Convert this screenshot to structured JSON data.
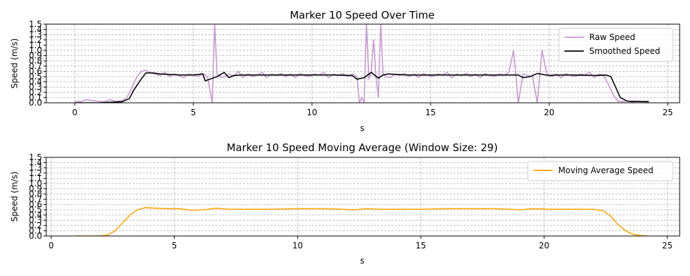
{
  "figure": {
    "background": "#ffffff"
  },
  "chart_data": [
    {
      "type": "line",
      "title": "Marker 10 Speed Over Time",
      "xlabel": "s",
      "ylabel": "Speed (m/s)",
      "xlim": [
        -1.2,
        25.5
      ],
      "ylim": [
        0.0,
        1.5
      ],
      "xticks": [
        0,
        5,
        10,
        15,
        20,
        25
      ],
      "xtick_labels": [
        "0",
        "5",
        "10",
        "15",
        "20",
        "25"
      ],
      "yticks": [
        0.0,
        0.1,
        0.2,
        0.3,
        0.4,
        0.5,
        0.6,
        0.7,
        0.8,
        0.9,
        1.0,
        1.1,
        1.2,
        1.3,
        1.4,
        1.5
      ],
      "ytick_labels": [
        "0.0",
        "0.1",
        "0.2",
        "0.3",
        "0.4",
        "0.5",
        "0.6",
        "0.7",
        "0.8",
        "0.9",
        "1.0",
        "1.1",
        "1.2",
        "1.3",
        "1.4",
        "1.5"
      ],
      "grid": true,
      "legend_position": "top-right",
      "series": [
        {
          "name": "Raw Speed",
          "color": "#c896d2",
          "x": [
            0,
            0.25,
            0.5,
            0.75,
            1.0,
            1.25,
            1.5,
            1.75,
            2.0,
            2.2,
            2.4,
            2.6,
            2.8,
            3.0,
            3.2,
            3.4,
            3.6,
            3.8,
            4.0,
            4.2,
            4.4,
            4.6,
            4.8,
            5.0,
            5.2,
            5.4,
            5.6,
            5.8,
            5.9,
            6.0,
            6.2,
            6.4,
            6.5,
            6.7,
            6.9,
            7.1,
            7.3,
            7.5,
            7.7,
            7.9,
            8.1,
            8.3,
            8.5,
            8.7,
            8.9,
            9.1,
            9.3,
            9.5,
            9.7,
            9.9,
            10.1,
            10.3,
            10.5,
            10.7,
            10.9,
            11.1,
            11.3,
            11.5,
            11.7,
            11.9,
            12.0,
            12.1,
            12.2,
            12.3,
            12.4,
            12.5,
            12.6,
            12.7,
            12.8,
            12.9,
            13.0,
            13.1,
            13.3,
            13.5,
            13.7,
            13.9,
            14.1,
            14.3,
            14.5,
            14.7,
            14.9,
            15.1,
            15.3,
            15.5,
            15.7,
            15.9,
            16.1,
            16.3,
            16.5,
            16.7,
            16.9,
            17.1,
            17.3,
            17.5,
            17.7,
            17.9,
            18.1,
            18.3,
            18.5,
            18.7,
            18.9,
            19.1,
            19.3,
            19.5,
            19.7,
            19.9,
            20.1,
            20.3,
            20.5,
            20.7,
            20.9,
            21.1,
            21.3,
            21.5,
            21.7,
            21.9,
            22.1,
            22.3,
            22.5,
            22.7,
            22.9,
            23.1,
            23.3,
            23.5,
            23.7,
            23.9,
            24.2
          ],
          "y": [
            0.03,
            0.02,
            0.06,
            0.04,
            0.03,
            0.02,
            0.06,
            0.03,
            0.04,
            0.1,
            0.28,
            0.48,
            0.6,
            0.62,
            0.57,
            0.55,
            0.52,
            0.58,
            0.5,
            0.55,
            0.52,
            0.48,
            0.55,
            0.53,
            0.5,
            0.56,
            0.5,
            0.0,
            1.5,
            0.55,
            0.48,
            0.52,
            0.55,
            0.5,
            0.6,
            0.48,
            0.55,
            0.5,
            0.53,
            0.58,
            0.48,
            0.55,
            0.52,
            0.56,
            0.5,
            0.55,
            0.48,
            0.56,
            0.52,
            0.5,
            0.55,
            0.53,
            0.58,
            0.48,
            0.55,
            0.52,
            0.56,
            0.5,
            0.55,
            0.5,
            0.0,
            0.1,
            0.0,
            1.5,
            0.45,
            0.6,
            1.2,
            0.5,
            0.1,
            1.5,
            0.55,
            0.5,
            0.48,
            0.55,
            0.52,
            0.56,
            0.5,
            0.55,
            0.48,
            0.56,
            0.52,
            0.5,
            0.55,
            0.53,
            0.58,
            0.48,
            0.55,
            0.52,
            0.56,
            0.5,
            0.55,
            0.48,
            0.56,
            0.52,
            0.5,
            0.55,
            0.53,
            0.58,
            1.0,
            0.0,
            0.55,
            0.52,
            0.5,
            0.0,
            1.0,
            0.56,
            0.5,
            0.55,
            0.48,
            0.56,
            0.52,
            0.5,
            0.55,
            0.53,
            0.58,
            0.48,
            0.55,
            0.52,
            0.35,
            0.15,
            0.03,
            0.02,
            0.04,
            0.01,
            0.03,
            0.02,
            0.03
          ]
        },
        {
          "name": "Smoothed Speed",
          "color": "#000000",
          "x": [
            0,
            1.0,
            2.0,
            2.3,
            2.5,
            2.8,
            3.0,
            3.3,
            3.6,
            4.0,
            4.5,
            5.0,
            5.4,
            5.5,
            5.7,
            6.0,
            6.3,
            6.5,
            6.7,
            7.0,
            7.5,
            8.0,
            9.0,
            10.0,
            11.0,
            11.7,
            11.9,
            12.2,
            12.5,
            12.8,
            13.0,
            13.2,
            14.0,
            15.0,
            16.0,
            17.0,
            18.0,
            18.7,
            18.9,
            19.2,
            19.5,
            20.0,
            20.3,
            21.0,
            22.0,
            22.4,
            22.6,
            22.8,
            23.0,
            23.3,
            24.2
          ],
          "y": [
            0.0,
            0.0,
            0.02,
            0.08,
            0.25,
            0.45,
            0.57,
            0.57,
            0.55,
            0.54,
            0.53,
            0.53,
            0.55,
            0.42,
            0.45,
            0.5,
            0.58,
            0.48,
            0.52,
            0.53,
            0.53,
            0.53,
            0.53,
            0.53,
            0.53,
            0.52,
            0.45,
            0.48,
            0.58,
            0.47,
            0.53,
            0.55,
            0.53,
            0.53,
            0.53,
            0.53,
            0.53,
            0.53,
            0.48,
            0.5,
            0.56,
            0.52,
            0.53,
            0.53,
            0.52,
            0.53,
            0.5,
            0.3,
            0.1,
            0.03,
            0.02
          ]
        }
      ]
    },
    {
      "type": "line",
      "title": "Marker 10 Speed Moving Average (Window Size: 29)",
      "xlabel": "s",
      "ylabel": "Speed (m/s)",
      "xlim": [
        -0.2,
        25.5
      ],
      "ylim": [
        0.0,
        1.5
      ],
      "xticks": [
        0,
        5,
        10,
        15,
        20,
        25
      ],
      "xtick_labels": [
        "0",
        "5",
        "10",
        "15",
        "20",
        "25"
      ],
      "yticks": [
        0.0,
        0.1,
        0.2,
        0.3,
        0.4,
        0.5,
        0.6,
        0.7,
        0.8,
        0.9,
        1.0,
        1.1,
        1.2,
        1.3,
        1.4,
        1.5
      ],
      "ytick_labels": [
        "0.0",
        "0.1",
        "0.2",
        "0.3",
        "0.4",
        "0.5",
        "0.6",
        "0.7",
        "0.8",
        "0.9",
        "1.0",
        "1.1",
        "1.2",
        "1.3",
        "1.4",
        "1.5"
      ],
      "grid": true,
      "legend_position": "top-right",
      "series": [
        {
          "name": "Moving Average Speed",
          "color": "#ffa500",
          "x": [
            1.0,
            2.0,
            2.3,
            2.6,
            2.9,
            3.2,
            3.5,
            3.8,
            4.2,
            4.7,
            5.2,
            5.7,
            6.2,
            6.7,
            7.2,
            8.0,
            9.0,
            10.0,
            11.0,
            11.8,
            12.3,
            12.8,
            13.3,
            14.0,
            15.0,
            16.0,
            17.0,
            18.0,
            18.6,
            19.0,
            19.6,
            20.2,
            21.0,
            22.0,
            22.4,
            22.7,
            23.0,
            23.3,
            23.6,
            23.9,
            24.2
          ],
          "y": [
            0.0,
            0.0,
            0.02,
            0.1,
            0.25,
            0.4,
            0.5,
            0.54,
            0.53,
            0.52,
            0.52,
            0.49,
            0.5,
            0.53,
            0.51,
            0.51,
            0.51,
            0.52,
            0.52,
            0.51,
            0.5,
            0.52,
            0.51,
            0.51,
            0.51,
            0.52,
            0.52,
            0.52,
            0.51,
            0.5,
            0.52,
            0.51,
            0.51,
            0.51,
            0.48,
            0.38,
            0.22,
            0.1,
            0.03,
            0.01,
            0.0
          ]
        }
      ]
    }
  ]
}
